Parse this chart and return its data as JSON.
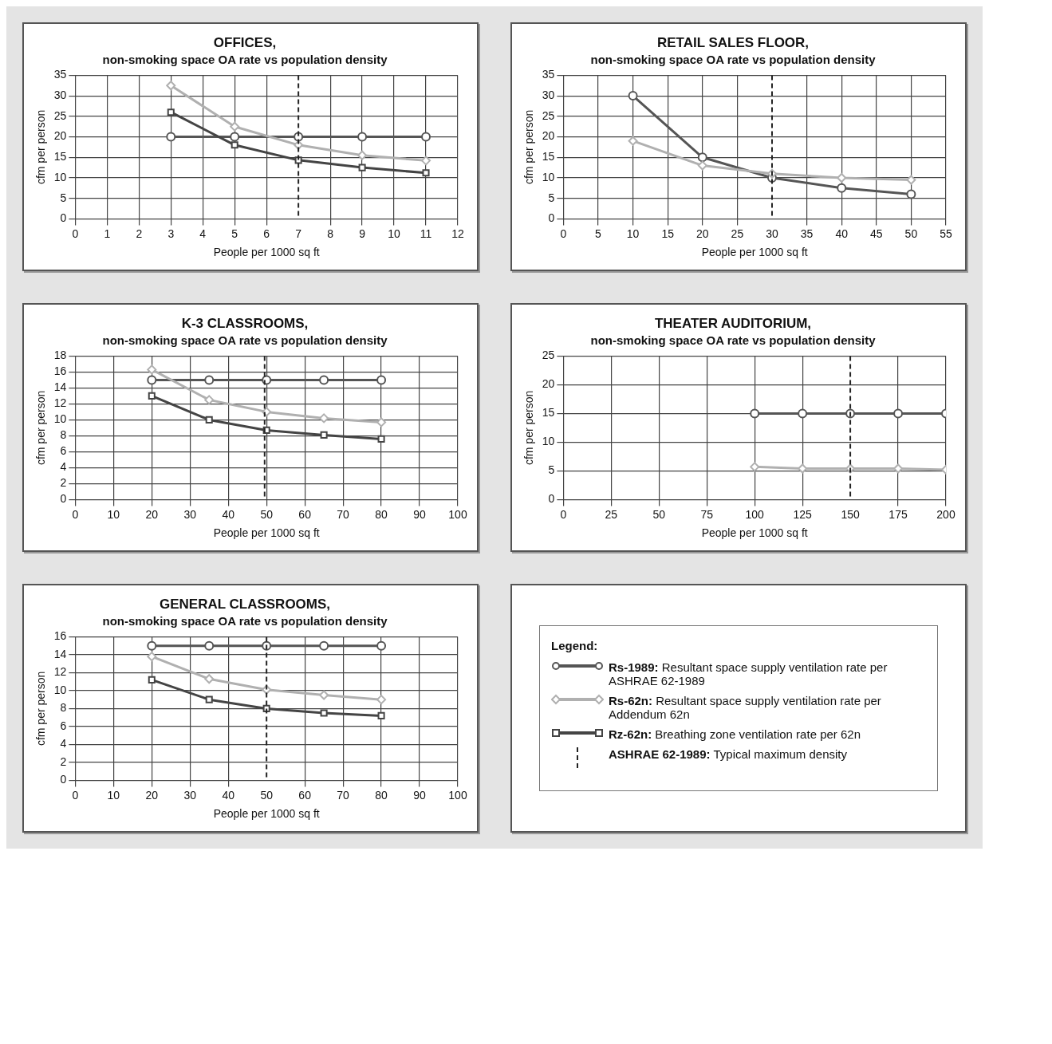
{
  "chart_data": [
    {
      "type": "line",
      "title": "OFFICES,",
      "subtitle": "non-smoking space OA rate vs population density",
      "xlabel": "People per 1000 sq ft",
      "ylabel": "cfm per person",
      "x": [
        3,
        5,
        7,
        9,
        11
      ],
      "series": [
        {
          "color": "#555555",
          "marker": "circle",
          "values": [
            20,
            20,
            20,
            20,
            20
          ]
        },
        {
          "color": "#b0b0b0",
          "marker": "diamond",
          "values": [
            32.5,
            22.5,
            18,
            15.5,
            14.2
          ]
        },
        {
          "color": "#444444",
          "marker": "square",
          "values": [
            26,
            18,
            14.3,
            12.5,
            11.2
          ]
        }
      ],
      "xlim": [
        0,
        12
      ],
      "xticks": [
        0,
        1,
        2,
        3,
        4,
        5,
        6,
        7,
        8,
        9,
        10,
        11,
        12
      ],
      "ylim": [
        0,
        35
      ],
      "yticks": [
        0,
        5,
        10,
        15,
        20,
        25,
        30,
        35
      ],
      "grid": true,
      "legend": false,
      "ref_lines": [
        {
          "axis": "x",
          "value": 7,
          "line_style": "dashed",
          "color": "#222222"
        }
      ]
    },
    {
      "type": "line",
      "title": "RETAIL SALES FLOOR,",
      "subtitle": "non-smoking space OA rate vs population density",
      "xlabel": "People per 1000 sq ft",
      "ylabel": "cfm per person",
      "x": [
        10,
        20,
        30,
        40,
        50
      ],
      "series": [
        {
          "color": "#555555",
          "marker": "circle",
          "values": [
            30,
            15,
            10,
            7.5,
            6
          ]
        },
        {
          "color": "#b0b0b0",
          "marker": "diamond",
          "values": [
            19,
            13,
            11,
            10,
            9.5
          ]
        }
      ],
      "xlim": [
        0,
        55
      ],
      "xticks": [
        0,
        5,
        10,
        15,
        20,
        25,
        30,
        35,
        40,
        45,
        50,
        55
      ],
      "ylim": [
        0,
        35
      ],
      "yticks": [
        0,
        5,
        10,
        15,
        20,
        25,
        30,
        35
      ],
      "grid": true,
      "legend": false,
      "ref_lines": [
        {
          "axis": "x",
          "value": 30,
          "line_style": "dashed",
          "color": "#222222"
        }
      ]
    },
    {
      "type": "line",
      "title": "K-3 CLASSROOMS,",
      "subtitle": "non-smoking space OA rate vs population density",
      "xlabel": "People per 1000 sq ft",
      "ylabel": "cfm per person",
      "x": [
        20,
        35,
        50,
        65,
        80
      ],
      "series": [
        {
          "color": "#555555",
          "marker": "circle",
          "values": [
            15,
            15,
            15,
            15,
            15
          ]
        },
        {
          "color": "#b0b0b0",
          "marker": "diamond",
          "values": [
            16.3,
            12.5,
            11,
            10.2,
            9.7
          ]
        },
        {
          "color": "#444444",
          "marker": "square",
          "values": [
            13,
            10,
            8.7,
            8.1,
            7.6
          ]
        }
      ],
      "xlim": [
        0,
        100
      ],
      "xticks": [
        0,
        10,
        20,
        30,
        40,
        50,
        60,
        70,
        80,
        90,
        100
      ],
      "ylim": [
        0,
        18
      ],
      "yticks": [
        0,
        2,
        4,
        6,
        8,
        10,
        12,
        14,
        16,
        18
      ],
      "grid": true,
      "legend": false,
      "ref_lines": [
        {
          "axis": "x",
          "value": 49.5,
          "line_style": "dashed",
          "color": "#222222"
        }
      ]
    },
    {
      "type": "line",
      "title": "THEATER AUDITORIUM,",
      "subtitle": "non-smoking space OA rate vs population density",
      "xlabel": "People per 1000 sq ft",
      "ylabel": "cfm per person",
      "x": [
        100,
        125,
        150,
        175,
        200
      ],
      "series": [
        {
          "color": "#555555",
          "marker": "circle",
          "values": [
            15,
            15,
            15,
            15,
            15
          ]
        },
        {
          "color": "#b0b0b0",
          "marker": "diamond",
          "values": [
            5.7,
            5.4,
            5.4,
            5.4,
            5.2
          ]
        }
      ],
      "xlim": [
        0,
        200
      ],
      "xticks": [
        0,
        25,
        50,
        75,
        100,
        125,
        150,
        175,
        200
      ],
      "ylim": [
        0,
        25
      ],
      "yticks": [
        0,
        5,
        10,
        15,
        20,
        25
      ],
      "grid": true,
      "legend": false,
      "ref_lines": [
        {
          "axis": "x",
          "value": 150,
          "line_style": "dashed",
          "color": "#222222"
        }
      ]
    },
    {
      "type": "line",
      "title": "GENERAL CLASSROOMS,",
      "subtitle": "non-smoking space OA rate vs population density",
      "xlabel": "People per 1000 sq ft",
      "ylabel": "cfm per person",
      "x": [
        20,
        35,
        50,
        65,
        80
      ],
      "series": [
        {
          "color": "#555555",
          "marker": "circle",
          "values": [
            15,
            15,
            15,
            15,
            15
          ]
        },
        {
          "color": "#b0b0b0",
          "marker": "diamond",
          "values": [
            13.8,
            11.3,
            10.1,
            9.5,
            9
          ]
        },
        {
          "color": "#444444",
          "marker": "square",
          "values": [
            11.2,
            9,
            8,
            7.5,
            7.2
          ]
        }
      ],
      "xlim": [
        0,
        100
      ],
      "xticks": [
        0,
        10,
        20,
        30,
        40,
        50,
        60,
        70,
        80,
        90,
        100
      ],
      "ylim": [
        0,
        16
      ],
      "yticks": [
        0,
        2,
        4,
        6,
        8,
        10,
        12,
        14,
        16
      ],
      "grid": true,
      "legend": false,
      "ref_lines": [
        {
          "axis": "x",
          "value": 50,
          "line_style": "dashed",
          "color": "#222222"
        }
      ]
    },
    {
      "type": "other",
      "legend_title": "Legend:",
      "annotations": [
        "Rs-1989: Resultant space supply ventilation rate per ASHRAE 62-1989",
        "Rs-62n: Resultant space supply ventilation rate per Addendum 62n",
        "Rz-62n: Breathing zone ventilation rate per 62n",
        "ASHRAE 62-1989: Typical maximum density"
      ]
    }
  ]
}
